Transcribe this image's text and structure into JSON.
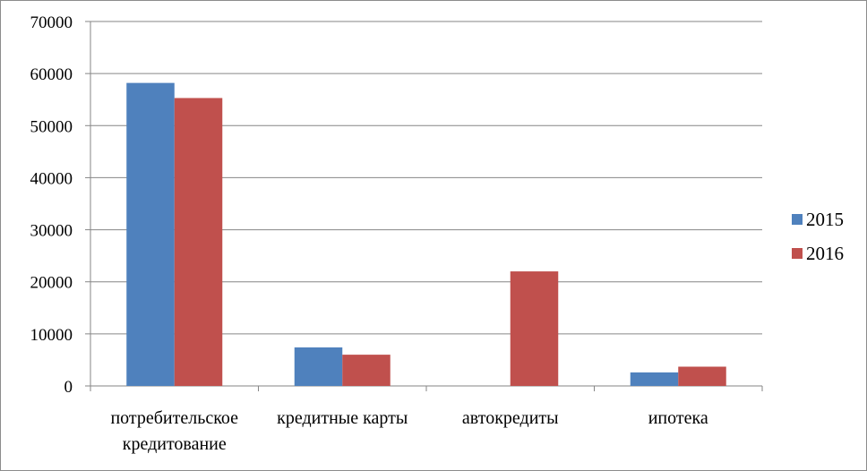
{
  "chart_data": {
    "type": "bar",
    "title": "",
    "xlabel": "",
    "ylabel": "",
    "ylim": [
      0,
      70000
    ],
    "yticks": [
      "0",
      "10000",
      "20000",
      "30000",
      "40000",
      "50000",
      "60000",
      "70000"
    ],
    "categories": [
      [
        "потребительское",
        "кредитование"
      ],
      [
        "кредитные карты"
      ],
      [
        "автокредиты"
      ],
      [
        "ипотека"
      ]
    ],
    "series": [
      {
        "name": "2015",
        "color": "#4f81bd",
        "values": [
          58200,
          7400,
          0,
          2600
        ]
      },
      {
        "name": "2016",
        "color": "#c0504d",
        "values": [
          55300,
          6000,
          22000,
          3700
        ]
      }
    ],
    "grid": true,
    "legend": "right"
  }
}
